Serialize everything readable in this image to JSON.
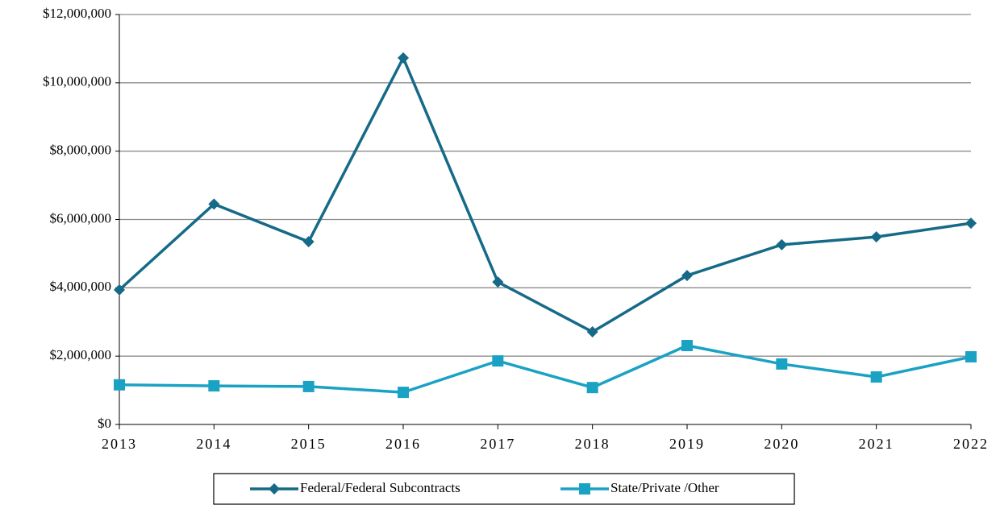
{
  "chart_data": {
    "type": "line",
    "categories": [
      "2013",
      "2014",
      "2015",
      "2016",
      "2017",
      "2018",
      "2019",
      "2020",
      "2021",
      "2022"
    ],
    "series": [
      {
        "name": "Federal/Federal Subcontracts",
        "color": "#156a87",
        "marker": "diamond",
        "values": [
          3940000,
          6450000,
          5350000,
          10730000,
          4170000,
          2710000,
          4360000,
          5260000,
          5490000,
          5890000
        ]
      },
      {
        "name": "State/Private /Other",
        "color": "#1aa2c4",
        "marker": "square",
        "values": [
          1160000,
          1130000,
          1110000,
          940000,
          1860000,
          1080000,
          2310000,
          1770000,
          1390000,
          1980000
        ]
      }
    ],
    "ylim": [
      0,
      12000000
    ],
    "yticks": [
      {
        "value": 0,
        "label": "$0"
      },
      {
        "value": 2000000,
        "label": "$2,000,000"
      },
      {
        "value": 4000000,
        "label": "$4,000,000"
      },
      {
        "value": 6000000,
        "label": "$6,000,000"
      },
      {
        "value": 8000000,
        "label": "$8,000,000"
      },
      {
        "value": 10000000,
        "label": "$10,000,000"
      },
      {
        "value": 12000000,
        "label": "$12,000,000"
      }
    ],
    "grid": true,
    "legend": "bottom"
  }
}
